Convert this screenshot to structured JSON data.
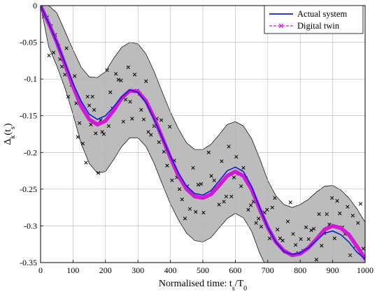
{
  "chart_data": {
    "type": "line",
    "xlabel": "Normalised time: t_s/T_0",
    "ylabel": "Δ_k(t_s)",
    "xlim": [
      0,
      1000
    ],
    "ylim": [
      -0.35,
      0
    ],
    "xticks": [
      0,
      100,
      200,
      300,
      400,
      500,
      600,
      700,
      800,
      900,
      1000
    ],
    "yticks": [
      0,
      -0.05,
      -0.1,
      -0.15,
      -0.2,
      -0.25,
      -0.3,
      -0.35
    ],
    "xtick_labels": [
      "0",
      "100",
      "200",
      "300",
      "400",
      "500",
      "600",
      "700",
      "800",
      "900",
      "1000"
    ],
    "ytick_labels": [
      "0",
      "-0.05",
      "-0.1",
      "-0.15",
      "-0.2",
      "-0.25",
      "-0.3",
      "-0.35"
    ],
    "grid": true,
    "legend_position": "top-right",
    "colors": {
      "actual": "#0a1fcf",
      "twin": "#d21ad6",
      "band_fill": "#bcbcbc",
      "markers": "#000000"
    },
    "series": [
      {
        "name": "Actual system",
        "style": "solid",
        "x": [
          0,
          25,
          50,
          75,
          100,
          125,
          150,
          175,
          200,
          225,
          250,
          275,
          300,
          325,
          350,
          375,
          400,
          425,
          450,
          475,
          500,
          525,
          550,
          575,
          600,
          625,
          650,
          675,
          700,
          725,
          750,
          775,
          800,
          825,
          850,
          875,
          900,
          925,
          950,
          975,
          1000
        ],
        "y": [
          0,
          -0.024,
          -0.05,
          -0.078,
          -0.106,
          -0.13,
          -0.148,
          -0.155,
          -0.15,
          -0.138,
          -0.124,
          -0.115,
          -0.118,
          -0.132,
          -0.155,
          -0.18,
          -0.205,
          -0.228,
          -0.246,
          -0.256,
          -0.258,
          -0.252,
          -0.239,
          -0.225,
          -0.22,
          -0.226,
          -0.246,
          -0.275,
          -0.302,
          -0.322,
          -0.335,
          -0.339,
          -0.337,
          -0.33,
          -0.32,
          -0.31,
          -0.307,
          -0.312,
          -0.322,
          -0.336,
          -0.345
        ]
      },
      {
        "name": "Digital twin",
        "style": "dashed-x",
        "x": [
          0,
          25,
          50,
          75,
          100,
          125,
          150,
          175,
          200,
          225,
          250,
          275,
          300,
          325,
          350,
          375,
          400,
          425,
          450,
          475,
          500,
          525,
          550,
          575,
          600,
          625,
          650,
          675,
          700,
          725,
          750,
          775,
          800,
          825,
          850,
          875,
          900,
          925,
          950,
          975,
          1000
        ],
        "y": [
          0,
          -0.024,
          -0.05,
          -0.08,
          -0.11,
          -0.137,
          -0.155,
          -0.162,
          -0.157,
          -0.143,
          -0.126,
          -0.116,
          -0.117,
          -0.13,
          -0.153,
          -0.18,
          -0.207,
          -0.232,
          -0.25,
          -0.26,
          -0.262,
          -0.257,
          -0.245,
          -0.232,
          -0.226,
          -0.232,
          -0.25,
          -0.277,
          -0.302,
          -0.322,
          -0.334,
          -0.34,
          -0.338,
          -0.33,
          -0.318,
          -0.305,
          -0.3,
          -0.303,
          -0.312,
          -0.328,
          -0.345
        ]
      },
      {
        "name": "Confidence band",
        "type": "area",
        "x": [
          0,
          25,
          50,
          75,
          100,
          125,
          150,
          175,
          200,
          225,
          250,
          275,
          300,
          325,
          350,
          375,
          400,
          425,
          450,
          475,
          500,
          525,
          550,
          575,
          600,
          625,
          650,
          675,
          700,
          725,
          750,
          775,
          800,
          825,
          850,
          875,
          900,
          925,
          950,
          975,
          1000
        ],
        "upper": [
          0,
          0.0,
          -0.01,
          -0.035,
          -0.06,
          -0.084,
          -0.097,
          -0.098,
          -0.09,
          -0.072,
          -0.057,
          -0.05,
          -0.052,
          -0.066,
          -0.09,
          -0.118,
          -0.145,
          -0.168,
          -0.187,
          -0.196,
          -0.196,
          -0.189,
          -0.176,
          -0.162,
          -0.158,
          -0.164,
          -0.181,
          -0.208,
          -0.238,
          -0.259,
          -0.271,
          -0.275,
          -0.271,
          -0.264,
          -0.254,
          -0.246,
          -0.245,
          -0.251,
          -0.262,
          -0.277,
          -0.295
        ],
        "lower": [
          0,
          -0.056,
          -0.082,
          -0.112,
          -0.148,
          -0.188,
          -0.215,
          -0.228,
          -0.226,
          -0.21,
          -0.192,
          -0.18,
          -0.18,
          -0.192,
          -0.215,
          -0.243,
          -0.27,
          -0.292,
          -0.31,
          -0.32,
          -0.322,
          -0.316,
          -0.303,
          -0.29,
          -0.283,
          -0.289,
          -0.307,
          -0.337,
          -0.36,
          -0.38,
          -0.39,
          -0.395,
          -0.395,
          -0.39,
          -0.38,
          -0.37,
          -0.366,
          -0.369,
          -0.378,
          -0.39,
          -0.4
        ]
      },
      {
        "name": "Measurements",
        "type": "scatter",
        "x": [
          10,
          20,
          26,
          32,
          40,
          45,
          55,
          60,
          66,
          75,
          80,
          85,
          95,
          105,
          110,
          115,
          120,
          130,
          140,
          145,
          150,
          155,
          160,
          165,
          170,
          178,
          185,
          190,
          195,
          205,
          210,
          215,
          222,
          232,
          240,
          248,
          255,
          262,
          270,
          276,
          282,
          290,
          298,
          305,
          310,
          318,
          325,
          332,
          340,
          350,
          358,
          365,
          372,
          380,
          390,
          398,
          405,
          412,
          420,
          428,
          436,
          445,
          452,
          460,
          470,
          478,
          486,
          495,
          502,
          510,
          518,
          526,
          535,
          542,
          550,
          558,
          565,
          572,
          580,
          588,
          596,
          603,
          610,
          618,
          625,
          632,
          640,
          648,
          656,
          664,
          672,
          680,
          690,
          698,
          706,
          714,
          722,
          730,
          738,
          746,
          754,
          762,
          770,
          778,
          786,
          794,
          802,
          810,
          818,
          826,
          834,
          842,
          850,
          858,
          866,
          874,
          882,
          890,
          898,
          906,
          914,
          922,
          930,
          938,
          946,
          954,
          962,
          970,
          978,
          986,
          994
        ],
        "y": [
          -0.015,
          -0.016,
          -0.068,
          -0.028,
          -0.064,
          -0.04,
          -0.055,
          -0.073,
          -0.083,
          -0.094,
          -0.058,
          -0.124,
          -0.108,
          -0.096,
          -0.133,
          -0.179,
          -0.16,
          -0.188,
          -0.214,
          -0.124,
          -0.136,
          -0.162,
          -0.124,
          -0.142,
          -0.174,
          -0.228,
          -0.156,
          -0.172,
          -0.175,
          -0.088,
          -0.164,
          -0.118,
          -0.14,
          -0.093,
          -0.101,
          -0.102,
          -0.158,
          -0.128,
          -0.084,
          -0.131,
          -0.154,
          -0.094,
          -0.116,
          -0.12,
          -0.142,
          -0.155,
          -0.103,
          -0.172,
          -0.176,
          -0.164,
          -0.154,
          -0.186,
          -0.156,
          -0.199,
          -0.218,
          -0.165,
          -0.238,
          -0.211,
          -0.234,
          -0.25,
          -0.264,
          -0.29,
          -0.246,
          -0.277,
          -0.221,
          -0.281,
          -0.244,
          -0.243,
          -0.282,
          -0.26,
          -0.2,
          -0.232,
          -0.238,
          -0.248,
          -0.271,
          -0.212,
          -0.267,
          -0.26,
          -0.192,
          -0.26,
          -0.234,
          -0.206,
          -0.229,
          -0.246,
          -0.221,
          -0.235,
          -0.278,
          -0.272,
          -0.267,
          -0.296,
          -0.29,
          -0.301,
          -0.282,
          -0.278,
          -0.317,
          -0.275,
          -0.262,
          -0.305,
          -0.317,
          -0.32,
          -0.335,
          -0.294,
          -0.268,
          -0.311,
          -0.326,
          -0.337,
          -0.318,
          -0.334,
          -0.302,
          -0.318,
          -0.306,
          -0.304,
          -0.346,
          -0.284,
          -0.327,
          -0.31,
          -0.284,
          -0.298,
          -0.262,
          -0.317,
          -0.266,
          -0.283,
          -0.302,
          -0.311,
          -0.274,
          -0.34,
          -0.286,
          -0.328,
          -0.296,
          -0.27,
          -0.331
        ]
      }
    ]
  }
}
